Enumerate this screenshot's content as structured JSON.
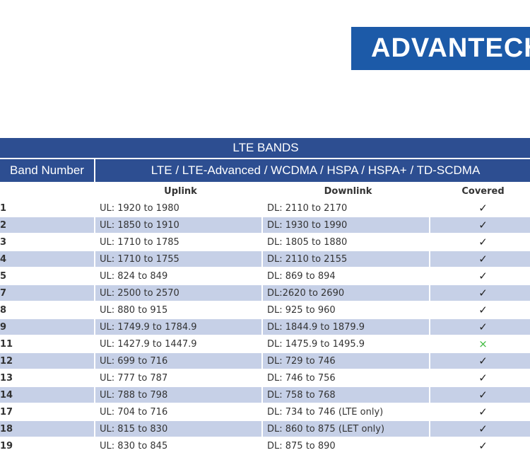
{
  "header": {
    "logo": "ADVANTECH"
  },
  "table": {
    "title": "LTE BANDS",
    "band_header": "Band Number",
    "tech_header": "LTE / LTE-Advanced / WCDMA / HSPA / HSPA+ / TD-SCDMA",
    "columns": [
      "Uplink",
      "Downlink",
      "Covered"
    ],
    "rows": [
      [
        "1",
        "UL: 1920 to 1980",
        "DL: 2110 to 2170",
        "✓"
      ],
      [
        "2",
        "UL: 1850 to 1910",
        "DL: 1930 to 1990",
        "✓"
      ],
      [
        "3",
        "UL: 1710 to 1785",
        "DL: 1805 to 1880",
        "✓"
      ],
      [
        "4",
        "UL: 1710 to 1755",
        "DL: 2110 to 2155",
        "✓"
      ],
      [
        "5",
        "UL: 824 to 849",
        "DL: 869 to 894",
        "✓"
      ],
      [
        "7",
        "UL: 2500 to 2570",
        "DL:2620 to 2690",
        "✓"
      ],
      [
        "8",
        "UL: 880 to 915",
        "DL: 925 to 960",
        "✓"
      ],
      [
        "9",
        "UL: 1749.9 to 1784.9",
        "DL: 1844.9 to 1879.9",
        "✓"
      ],
      [
        "11",
        "UL: 1427.9 to 1447.9",
        "DL: 1475.9 to 1495.9",
        "×"
      ],
      [
        "12",
        "UL: 699 to 716",
        "DL: 729 to 746",
        "✓"
      ],
      [
        "13",
        "UL: 777 to 787",
        "DL: 746 to 756",
        "✓"
      ],
      [
        "14",
        "UL: 788 to 798",
        "DL: 758 to 768",
        "✓"
      ],
      [
        "17",
        "UL: 704 to 716",
        "DL: 734 to 746 (LTE only)",
        "✓"
      ],
      [
        "18",
        "UL: 815 to 830",
        "DL: 860 to 875 (LET only)",
        "✓"
      ],
      [
        "19",
        "UL: 830 to 845",
        "DL: 875 to 890",
        "✓"
      ]
    ]
  }
}
